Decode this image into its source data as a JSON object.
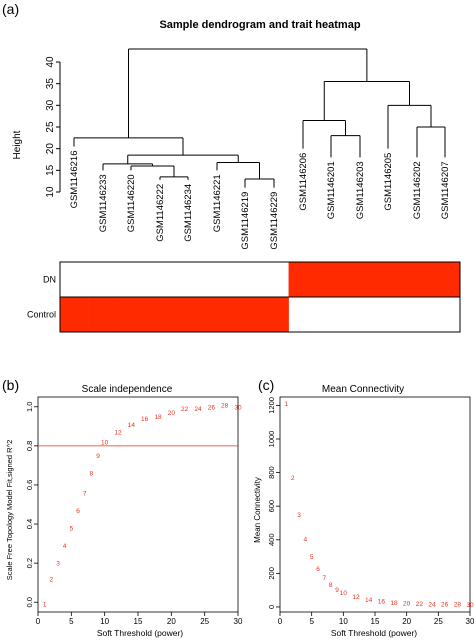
{
  "panel_labels": {
    "a": "(a)",
    "b": "(b)",
    "c": "(c)"
  },
  "colors": {
    "red": "#ff2a00",
    "curve_red": "#e8321a",
    "threshold_line": "#e8321a"
  },
  "chart_data": [
    {
      "id": "dendrogram",
      "type": "dendrogram",
      "title": "Sample dendrogram and trait heatmap",
      "ylabel": "Height",
      "ylim": [
        8,
        47
      ],
      "yticks": [
        10,
        15,
        20,
        25,
        30,
        35,
        40
      ],
      "leaves": [
        "GSM1146216",
        "GSM1146233",
        "GSM1146220",
        "GSM1146222",
        "GSM1146234",
        "GSM1146221",
        "GSM1146219",
        "GSM1146229",
        "GSM1146206",
        "GSM1146201",
        "GSM1146203",
        "GSM1146205",
        "GSM1146202",
        "GSM1146207"
      ],
      "merges": [
        {
          "a": 2,
          "b": 3,
          "height": 16.5
        },
        {
          "a": 4,
          "b": -1,
          "height": 13.5,
          "a_leaf": 4,
          "b_leaf": null
        },
        {
          "a": 6,
          "b": 7,
          "height": 13.0
        },
        {
          "a": 9,
          "b": 10,
          "height": 23.0
        },
        {
          "a": 12,
          "b": 13,
          "height": 25.0
        }
      ],
      "traits": [
        {
          "name": "DN",
          "cells": [
            0,
            0,
            0,
            0,
            0,
            0,
            0,
            0,
            1,
            1,
            1,
            1,
            1,
            1
          ]
        },
        {
          "name": "Control",
          "cells": [
            1,
            1,
            1,
            1,
            1,
            1,
            1,
            1,
            0,
            0,
            0,
            0,
            0,
            0
          ]
        }
      ]
    },
    {
      "id": "scale-independence",
      "type": "scatter",
      "title": "Scale independence",
      "xlabel": "Soft Threshold (power)",
      "ylabel": "Scale Free Topology Model Fit,signed R^2",
      "xlim": [
        0,
        30
      ],
      "ylim": [
        -0.05,
        1.05
      ],
      "xticks": [
        0,
        5,
        10,
        15,
        20,
        25,
        30
      ],
      "yticks": [
        0.0,
        0.2,
        0.4,
        0.6,
        0.8,
        1.0
      ],
      "ytick_labels": [
        "0.0",
        "0.2",
        "0.4",
        "0.6",
        "0.8",
        "1.0"
      ],
      "threshold": 0.8,
      "x": [
        1,
        2,
        3,
        4,
        5,
        6,
        7,
        8,
        9,
        10,
        12,
        14,
        16,
        18,
        20,
        22,
        24,
        26,
        28,
        30
      ],
      "y": [
        -0.01,
        0.12,
        0.2,
        0.29,
        0.38,
        0.47,
        0.56,
        0.66,
        0.75,
        0.82,
        0.87,
        0.91,
        0.94,
        0.95,
        0.97,
        0.99,
        0.99,
        1.0,
        1.01,
        1.0
      ]
    },
    {
      "id": "mean-connectivity",
      "type": "scatter",
      "title": "Mean Connectivity",
      "xlabel": "Soft Threshold (power)",
      "ylabel": "Mean Connectivity",
      "xlim": [
        0,
        30
      ],
      "ylim": [
        -30,
        1250
      ],
      "xticks": [
        0,
        5,
        10,
        15,
        20,
        25,
        30
      ],
      "yticks": [
        0,
        200,
        400,
        600,
        800,
        1000,
        1200
      ],
      "x": [
        1,
        2,
        3,
        4,
        5,
        6,
        7,
        8,
        9,
        10,
        12,
        14,
        16,
        18,
        20,
        22,
        24,
        26,
        28,
        30
      ],
      "y": [
        1210,
        770,
        550,
        405,
        300,
        230,
        175,
        135,
        105,
        85,
        62,
        45,
        35,
        28,
        24,
        21,
        19,
        18,
        17,
        16
      ]
    }
  ]
}
